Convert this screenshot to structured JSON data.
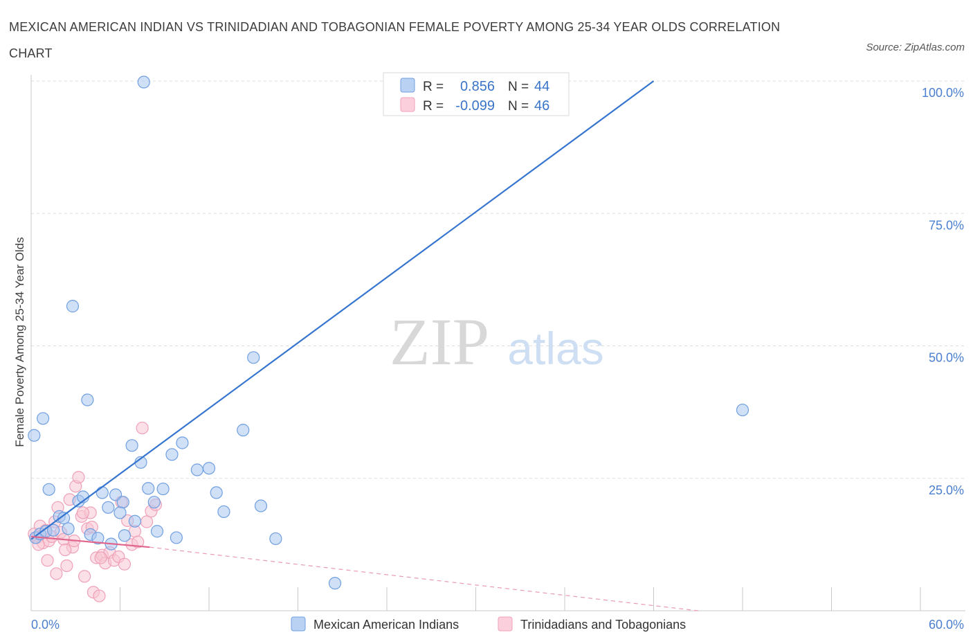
{
  "title": "MEXICAN AMERICAN INDIAN VS TRINIDADIAN AND TOBAGONIAN FEMALE POVERTY AMONG 25-34 YEAR OLDS CORRELATION CHART",
  "source": "Source: ZipAtlas.com",
  "watermark": {
    "zip": "ZIP",
    "atlas": "atlas"
  },
  "legend_top": [
    {
      "r_label": "R =",
      "r_value": "0.856",
      "n_label": "N =",
      "n_value": "44",
      "color": "#6f9fe0"
    },
    {
      "r_label": "R =",
      "r_value": "-0.099",
      "n_label": "N =",
      "n_value": "46",
      "color": "#f0a0b8"
    }
  ],
  "chart_data": {
    "type": "scatter",
    "title": "MEXICAN AMERICAN INDIAN VS TRINIDADIAN AND TOBAGONIAN FEMALE POVERTY AMONG 25-34 YEAR OLDS CORRELATION CHART",
    "xlabel": "",
    "ylabel": "Female Poverty Among 25-34 Year Olds",
    "xlim": [
      0,
      60
    ],
    "ylim": [
      0,
      100
    ],
    "x_tick_labels": [
      "0.0%",
      "60.0%"
    ],
    "y_tick_labels": [
      "25.0%",
      "50.0%",
      "75.0%",
      "100.0%"
    ],
    "y_ticks": [
      25,
      50,
      75,
      100
    ],
    "grid": true,
    "series": [
      {
        "name": "Mexican American Indians",
        "color": "#6f9fe0",
        "fill": "#a9c6f0",
        "trend": {
          "x": [
            0,
            42
          ],
          "y": [
            13.5,
            100
          ]
        },
        "x": [
          0.3,
          0.6,
          1.0,
          1.5,
          1.9,
          2.2,
          2.5,
          3.2,
          3.5,
          4.0,
          4.5,
          4.8,
          5.2,
          5.4,
          5.7,
          6.2,
          6.3,
          6.8,
          7.0,
          7.4,
          7.9,
          8.3,
          8.9,
          9.5,
          10.2,
          11.2,
          12.0,
          12.5,
          13.0,
          14.3,
          15.0,
          15.5,
          16.5,
          20.5,
          48.0,
          0.2,
          0.8,
          1.2,
          2.8,
          3.8,
          6.0,
          7.6,
          8.5,
          9.8
        ],
        "y": [
          13.8,
          14.5,
          15.0,
          15.2,
          17.8,
          17.5,
          15.5,
          20.7,
          21.5,
          14.4,
          13.7,
          22.3,
          19.5,
          12.6,
          21.9,
          20.5,
          14.2,
          31.2,
          16.9,
          28.0,
          23.1,
          20.5,
          23.0,
          29.5,
          31.7,
          26.6,
          26.9,
          22.3,
          18.7,
          34.1,
          47.8,
          19.8,
          13.6,
          5.2,
          37.9,
          33.1,
          36.3,
          22.9,
          57.5,
          39.8,
          18.5,
          99.8,
          15.0,
          13.8
        ],
        "_note": "values in data units (percent)"
      },
      {
        "name": "Trinidadians and Tobagonians",
        "color": "#f0a0b8",
        "fill": "#f8c6d4",
        "trend": {
          "x": [
            0,
            8
          ],
          "y": [
            14.0,
            12.0
          ]
        },
        "trend_ext": {
          "x": [
            8,
            45
          ],
          "y": [
            12.0,
            0
          ]
        },
        "x": [
          0.2,
          0.4,
          0.6,
          0.8,
          1.0,
          1.2,
          1.4,
          1.6,
          1.8,
          2.0,
          2.2,
          2.4,
          2.6,
          2.8,
          3.0,
          3.2,
          3.4,
          3.6,
          3.8,
          4.0,
          4.2,
          4.4,
          4.6,
          4.8,
          5.0,
          5.3,
          5.6,
          5.9,
          6.1,
          6.3,
          6.5,
          6.8,
          7.0,
          7.2,
          7.5,
          7.8,
          8.1,
          8.4,
          0.5,
          1.1,
          1.7,
          2.3,
          2.9,
          3.5,
          4.1,
          4.7
        ],
        "y": [
          14.5,
          13.8,
          16.0,
          12.8,
          15.2,
          13.2,
          14.0,
          16.8,
          19.5,
          14.8,
          13.5,
          8.5,
          21.0,
          12.0,
          23.5,
          25.2,
          17.8,
          6.5,
          15.5,
          18.5,
          3.5,
          10.0,
          2.8,
          10.5,
          9.0,
          11.0,
          9.5,
          10.2,
          20.5,
          8.8,
          17.0,
          12.5,
          15.0,
          13.0,
          34.5,
          16.8,
          18.8,
          20.0,
          12.5,
          9.5,
          7.0,
          11.5,
          13.2,
          18.5,
          15.8,
          10.0
        ],
        "_note": "values in data units (percent)"
      }
    ]
  },
  "bottom_legend": [
    {
      "label": "Mexican American Indians",
      "color": "#6f9fe0",
      "fill": "#a9c6f0"
    },
    {
      "label": "Trinidadians and Tobagonians",
      "color": "#f0a0b8",
      "fill": "#f8c6d4"
    }
  ]
}
